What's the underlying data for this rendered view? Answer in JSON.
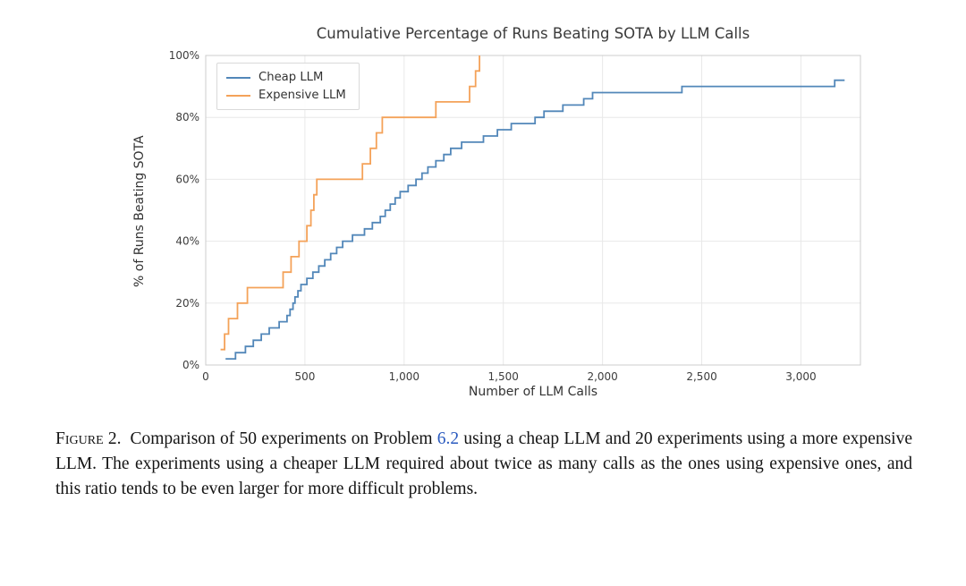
{
  "chart_data": {
    "type": "line",
    "line_style": "step-post",
    "title": "Cumulative Percentage of Runs Beating SOTA by LLM Calls",
    "xlabel": "Number of LLM Calls",
    "ylabel": "% of Runs Beating SOTA",
    "xlim": [
      0,
      3300
    ],
    "ylim": [
      0,
      100
    ],
    "grid": true,
    "grid_color": "#e8e8e8",
    "axis_color": "#cccccc",
    "legend_position": "upper-left",
    "x_ticks": [
      {
        "value": 0,
        "label": "0"
      },
      {
        "value": 500,
        "label": "500"
      },
      {
        "value": 1000,
        "label": "1,000"
      },
      {
        "value": 1500,
        "label": "1,500"
      },
      {
        "value": 2000,
        "label": "2,000"
      },
      {
        "value": 2500,
        "label": "2,500"
      },
      {
        "value": 3000,
        "label": "3,000"
      }
    ],
    "y_ticks": [
      {
        "value": 0,
        "label": "0%"
      },
      {
        "value": 20,
        "label": "20%"
      },
      {
        "value": 40,
        "label": "40%"
      },
      {
        "value": 60,
        "label": "60%"
      },
      {
        "value": 80,
        "label": "80%"
      },
      {
        "value": 100,
        "label": "100%"
      }
    ],
    "series": [
      {
        "name": "Cheap LLM",
        "color": "#5287b9",
        "x_end": 3220,
        "points": [
          [
            100,
            2
          ],
          [
            150,
            4
          ],
          [
            200,
            6
          ],
          [
            240,
            8
          ],
          [
            280,
            10
          ],
          [
            320,
            12
          ],
          [
            370,
            14
          ],
          [
            410,
            16
          ],
          [
            425,
            18
          ],
          [
            440,
            20
          ],
          [
            450,
            22
          ],
          [
            465,
            24
          ],
          [
            480,
            26
          ],
          [
            510,
            28
          ],
          [
            540,
            30
          ],
          [
            570,
            32
          ],
          [
            600,
            34
          ],
          [
            630,
            36
          ],
          [
            660,
            38
          ],
          [
            690,
            40
          ],
          [
            740,
            42
          ],
          [
            800,
            44
          ],
          [
            840,
            46
          ],
          [
            880,
            48
          ],
          [
            905,
            50
          ],
          [
            930,
            52
          ],
          [
            955,
            54
          ],
          [
            980,
            56
          ],
          [
            1020,
            58
          ],
          [
            1060,
            60
          ],
          [
            1090,
            62
          ],
          [
            1120,
            64
          ],
          [
            1160,
            66
          ],
          [
            1200,
            68
          ],
          [
            1235,
            70
          ],
          [
            1290,
            72
          ],
          [
            1400,
            74
          ],
          [
            1470,
            76
          ],
          [
            1540,
            78
          ],
          [
            1660,
            80
          ],
          [
            1705,
            82
          ],
          [
            1800,
            84
          ],
          [
            1905,
            86
          ],
          [
            1950,
            88
          ],
          [
            2400,
            90
          ],
          [
            3170,
            92
          ]
        ]
      },
      {
        "name": "Expensive LLM",
        "color": "#f4a259",
        "x_end": null,
        "points": [
          [
            75,
            5
          ],
          [
            95,
            10
          ],
          [
            115,
            15
          ],
          [
            160,
            20
          ],
          [
            210,
            25
          ],
          [
            390,
            30
          ],
          [
            430,
            35
          ],
          [
            470,
            40
          ],
          [
            510,
            45
          ],
          [
            530,
            50
          ],
          [
            545,
            55
          ],
          [
            560,
            60
          ],
          [
            790,
            65
          ],
          [
            830,
            70
          ],
          [
            860,
            75
          ],
          [
            890,
            80
          ],
          [
            1160,
            85
          ],
          [
            1330,
            90
          ],
          [
            1360,
            95
          ],
          [
            1380,
            100
          ]
        ]
      }
    ]
  },
  "caption": {
    "label": "Figure 2.",
    "text_before_link": "Comparison of 50 experiments on Problem ",
    "link": "6.2",
    "link_color": "#2a5abf",
    "text_after_link": " using a cheap LLM and 20 experiments using a more expensive LLM. The experiments using a cheaper LLM required about twice as many calls as the ones using expensive ones, and this ratio tends to be even larger for more difficult problems."
  }
}
